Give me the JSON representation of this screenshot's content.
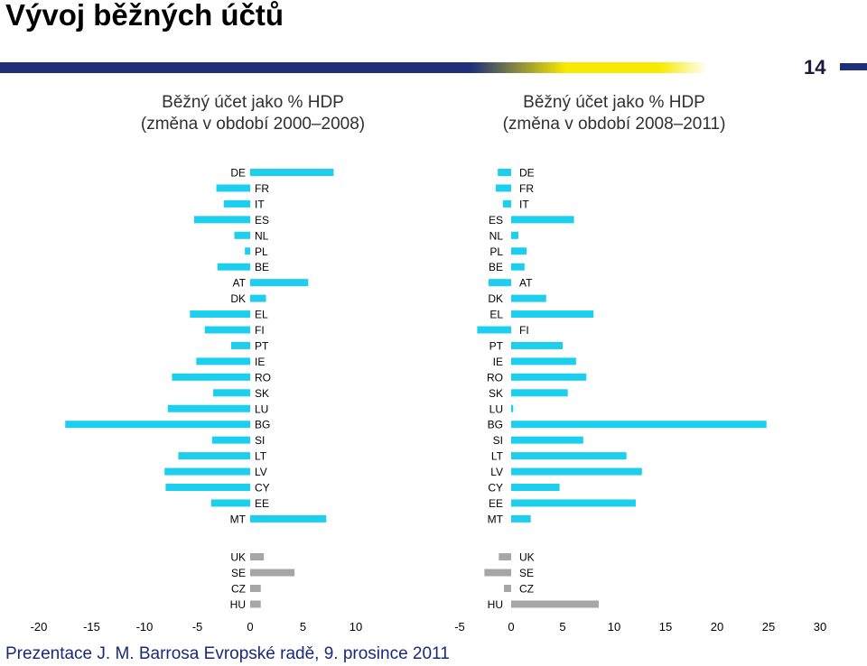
{
  "page": {
    "title": "Vývoj běžných účtů",
    "page_number": "14",
    "footer": "Prezentace J. M. Barrosa Evropské radě, 9. prosince 2011"
  },
  "colors": {
    "main_bar": "#1ccfef",
    "group_bar": "#a6a6a6",
    "band_dark": "#1f2f7a",
    "band_yellow": "#f7ea00"
  },
  "chart_data": [
    {
      "type": "bar",
      "orientation": "horizontal",
      "title": [
        "Běžný účet jako % HDP",
        "(změna v období 2000–2008)"
      ],
      "xlim": [
        -20,
        10
      ],
      "xticks": [
        -20,
        -15,
        -10,
        -5,
        0,
        5,
        10
      ],
      "categories": [
        "DE",
        "FR",
        "IT",
        "ES",
        "NL",
        "PL",
        "BE",
        "AT",
        "DK",
        "EL",
        "FI",
        "PT",
        "IE",
        "RO",
        "SK",
        "LU",
        "BG",
        "SI",
        "LT",
        "LV",
        "CY",
        "EE",
        "MT"
      ],
      "values": [
        7.9,
        -3.2,
        -2.5,
        -5.3,
        -1.5,
        -0.5,
        -3.1,
        5.5,
        1.5,
        -5.7,
        -4.3,
        -1.8,
        -5.1,
        -7.4,
        -3.5,
        -7.8,
        -17.5,
        -3.6,
        -6.8,
        -8.1,
        -8.0,
        -3.7,
        7.2
      ],
      "group_categories": [
        "UK",
        "SE",
        "CZ",
        "HU"
      ],
      "group_values": [
        1.3,
        4.2,
        1.0,
        1.0
      ]
    },
    {
      "type": "bar",
      "orientation": "horizontal",
      "title": [
        "Běžný účet jako % HDP",
        "(změna v období 2008–2011)"
      ],
      "xlim": [
        -5,
        30
      ],
      "xticks": [
        -5,
        0,
        5,
        10,
        15,
        20,
        25,
        30
      ],
      "categories": [
        "DE",
        "FR",
        "IT",
        "ES",
        "NL",
        "PL",
        "BE",
        "AT",
        "DK",
        "EL",
        "FI",
        "PT",
        "IE",
        "RO",
        "SK",
        "LU",
        "BG",
        "SI",
        "LT",
        "LV",
        "CY",
        "EE",
        "MT"
      ],
      "values": [
        -1.3,
        -1.5,
        -0.8,
        6.1,
        0.7,
        1.5,
        1.3,
        -2.2,
        3.4,
        8.0,
        -3.3,
        5.0,
        6.3,
        7.3,
        5.5,
        0.2,
        24.8,
        7.0,
        11.2,
        12.7,
        4.7,
        12.1,
        1.9
      ],
      "group_categories": [
        "UK",
        "SE",
        "CZ",
        "HU"
      ],
      "group_values": [
        -1.2,
        -2.6,
        -0.7,
        8.5
      ]
    }
  ]
}
